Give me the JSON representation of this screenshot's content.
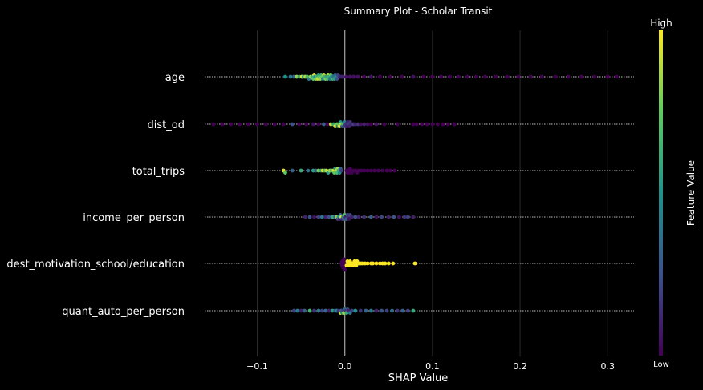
{
  "chart_data": {
    "type": "scatter",
    "subtype": "shap-beeswarm",
    "title": "Summary Plot - Scholar Transit",
    "xlabel": "SHAP Value",
    "xlim": [
      -0.16,
      0.33
    ],
    "xticks": [
      -0.1,
      0.0,
      0.1,
      0.2,
      0.3
    ],
    "xtick_labels": [
      "−0.1",
      "0.0",
      "0.1",
      "0.2",
      "0.3"
    ],
    "grid": true,
    "colorbar": {
      "label": "Feature Value",
      "high_label": "High",
      "low_label": "Low",
      "colormap": [
        "#440154",
        "#3b528b",
        "#21918c",
        "#5ec962",
        "#fde725"
      ]
    },
    "features": [
      {
        "name": "age",
        "points": [
          [
            -0.068,
            0.5
          ],
          [
            -0.062,
            0.4
          ],
          [
            -0.058,
            0.3
          ],
          [
            -0.055,
            0.85
          ],
          [
            -0.052,
            0.6
          ],
          [
            -0.049,
            0.95
          ],
          [
            -0.047,
            0.5
          ],
          [
            -0.045,
            0.9
          ],
          [
            -0.043,
            0.7
          ],
          [
            -0.041,
            0.4
          ],
          [
            -0.039,
            0.85
          ],
          [
            -0.037,
            0.6
          ],
          [
            -0.036,
            0.75
          ],
          [
            -0.035,
            0.95
          ],
          [
            -0.034,
            0.5
          ],
          [
            -0.033,
            0.8
          ],
          [
            -0.032,
            0.65
          ],
          [
            -0.031,
            0.9
          ],
          [
            -0.03,
            0.55
          ],
          [
            -0.029,
            0.7
          ],
          [
            -0.028,
            0.85
          ],
          [
            -0.027,
            0.6
          ],
          [
            -0.026,
            0.75
          ],
          [
            -0.025,
            0.45
          ],
          [
            -0.024,
            0.9
          ],
          [
            -0.023,
            0.65
          ],
          [
            -0.022,
            0.8
          ],
          [
            -0.021,
            0.55
          ],
          [
            -0.02,
            0.7
          ],
          [
            -0.019,
            0.85
          ],
          [
            -0.018,
            0.6
          ],
          [
            -0.017,
            0.4
          ],
          [
            -0.016,
            0.75
          ],
          [
            -0.015,
            0.5
          ],
          [
            -0.014,
            0.65
          ],
          [
            -0.013,
            0.35
          ],
          [
            -0.012,
            0.55
          ],
          [
            -0.011,
            0.3
          ],
          [
            -0.01,
            0.45
          ],
          [
            -0.009,
            0.25
          ],
          [
            -0.008,
            0.2
          ],
          [
            -0.006,
            0.15
          ],
          [
            -0.004,
            0.1
          ],
          [
            -0.002,
            0.1
          ],
          [
            0.002,
            0.05
          ],
          [
            0.006,
            0.05
          ],
          [
            0.01,
            0.05
          ],
          [
            0.015,
            0.05
          ],
          [
            0.022,
            0.0
          ],
          [
            0.03,
            0.05
          ],
          [
            0.04,
            0.0
          ],
          [
            0.052,
            0.0
          ],
          [
            0.065,
            0.0
          ],
          [
            0.078,
            0.05
          ],
          [
            0.09,
            0.0
          ],
          [
            0.1,
            0.0
          ],
          [
            0.11,
            0.0
          ],
          [
            0.12,
            0.0
          ],
          [
            0.13,
            0.0
          ],
          [
            0.14,
            0.0
          ],
          [
            0.15,
            0.0
          ],
          [
            0.16,
            0.0
          ],
          [
            0.172,
            0.0
          ],
          [
            0.185,
            0.0
          ],
          [
            0.198,
            0.0
          ],
          [
            0.212,
            0.0
          ],
          [
            0.225,
            0.0
          ],
          [
            0.24,
            0.0
          ],
          [
            0.255,
            0.0
          ],
          [
            0.27,
            0.0
          ],
          [
            0.285,
            0.0
          ],
          [
            0.3,
            0.0
          ],
          [
            0.31,
            0.0
          ]
        ]
      },
      {
        "name": "dist_od",
        "points": [
          [
            -0.15,
            0.0
          ],
          [
            -0.14,
            0.0
          ],
          [
            -0.13,
            0.0
          ],
          [
            -0.12,
            0.0
          ],
          [
            -0.11,
            0.0
          ],
          [
            -0.1,
            0.0
          ],
          [
            -0.09,
            0.0
          ],
          [
            -0.08,
            0.0
          ],
          [
            -0.07,
            0.0
          ],
          [
            -0.06,
            0.25
          ],
          [
            -0.052,
            0.0
          ],
          [
            -0.044,
            0.0
          ],
          [
            -0.036,
            0.05
          ],
          [
            -0.03,
            0.0
          ],
          [
            -0.024,
            0.3
          ],
          [
            -0.02,
            0.0
          ],
          [
            -0.016,
            0.9
          ],
          [
            -0.013,
            0.6
          ],
          [
            -0.011,
            0.95
          ],
          [
            -0.009,
            0.8
          ],
          [
            -0.008,
            0.4
          ],
          [
            -0.007,
            0.7
          ],
          [
            -0.006,
            0.95
          ],
          [
            -0.005,
            0.5
          ],
          [
            -0.004,
            0.85
          ],
          [
            -0.003,
            0.3
          ],
          [
            -0.002,
            0.65
          ],
          [
            -0.001,
            0.2
          ],
          [
            0.0,
            0.45
          ],
          [
            0.001,
            0.15
          ],
          [
            0.002,
            0.1
          ],
          [
            0.003,
            0.1
          ],
          [
            0.004,
            0.2
          ],
          [
            0.005,
            0.1
          ],
          [
            0.006,
            0.15
          ],
          [
            0.008,
            0.1
          ],
          [
            0.01,
            0.2
          ],
          [
            0.012,
            0.1
          ],
          [
            0.015,
            0.15
          ],
          [
            0.018,
            0.05
          ],
          [
            0.022,
            0.1
          ],
          [
            0.026,
            0.05
          ],
          [
            0.03,
            0.0
          ],
          [
            0.036,
            0.05
          ],
          [
            0.045,
            0.0
          ],
          [
            0.06,
            0.0
          ],
          [
            0.078,
            0.0
          ],
          [
            0.082,
            0.0
          ],
          [
            0.088,
            0.0
          ],
          [
            0.094,
            0.0
          ],
          [
            0.1,
            0.0
          ],
          [
            0.106,
            0.0
          ],
          [
            0.112,
            0.0
          ],
          [
            0.118,
            0.0
          ],
          [
            0.125,
            0.0
          ]
        ]
      },
      {
        "name": "total_trips",
        "points": [
          [
            -0.07,
            0.95
          ],
          [
            -0.068,
            0.75
          ],
          [
            -0.06,
            0.3
          ],
          [
            -0.05,
            0.6
          ],
          [
            -0.042,
            0.35
          ],
          [
            -0.036,
            0.55
          ],
          [
            -0.033,
            0.3
          ],
          [
            -0.03,
            0.8
          ],
          [
            -0.027,
            0.6
          ],
          [
            -0.025,
            0.95
          ],
          [
            -0.023,
            0.7
          ],
          [
            -0.021,
            0.9
          ],
          [
            -0.019,
            0.55
          ],
          [
            -0.017,
            0.85
          ],
          [
            -0.015,
            0.65
          ],
          [
            -0.013,
            0.95
          ],
          [
            -0.012,
            0.75
          ],
          [
            -0.011,
            0.5
          ],
          [
            -0.01,
            0.9
          ],
          [
            -0.009,
            0.7
          ],
          [
            -0.008,
            0.85
          ],
          [
            -0.007,
            0.6
          ],
          [
            -0.006,
            0.5
          ],
          [
            -0.005,
            0.3
          ],
          [
            -0.004,
            0.2
          ],
          [
            0.002,
            0.0
          ],
          [
            0.003,
            0.0
          ],
          [
            0.004,
            0.0
          ],
          [
            0.005,
            0.0
          ],
          [
            0.006,
            0.0
          ],
          [
            0.007,
            0.0
          ],
          [
            0.008,
            0.0
          ],
          [
            0.01,
            0.0
          ],
          [
            0.012,
            0.0
          ],
          [
            0.014,
            0.0
          ],
          [
            0.016,
            0.0
          ],
          [
            0.019,
            0.0
          ],
          [
            0.022,
            0.0
          ],
          [
            0.026,
            0.0
          ],
          [
            0.03,
            0.0
          ],
          [
            0.034,
            0.0
          ],
          [
            0.038,
            0.0
          ],
          [
            0.043,
            0.0
          ],
          [
            0.048,
            0.0
          ],
          [
            0.052,
            0.0
          ],
          [
            0.057,
            0.0
          ]
        ]
      },
      {
        "name": "income_per_person",
        "points": [
          [
            -0.045,
            0.1
          ],
          [
            -0.04,
            0.25
          ],
          [
            -0.035,
            0.05
          ],
          [
            -0.03,
            0.2
          ],
          [
            -0.026,
            0.4
          ],
          [
            -0.022,
            0.1
          ],
          [
            -0.018,
            0.25
          ],
          [
            -0.014,
            0.6
          ],
          [
            -0.011,
            0.3
          ],
          [
            -0.009,
            0.85
          ],
          [
            -0.008,
            0.2
          ],
          [
            -0.007,
            0.5
          ],
          [
            -0.006,
            0.1
          ],
          [
            -0.005,
            0.35
          ],
          [
            -0.004,
            0.95
          ],
          [
            -0.003,
            0.15
          ],
          [
            -0.002,
            0.45
          ],
          [
            -0.001,
            0.25
          ],
          [
            0.0,
            0.7
          ],
          [
            0.001,
            0.1
          ],
          [
            0.002,
            0.3
          ],
          [
            0.003,
            0.2
          ],
          [
            0.004,
            0.15
          ],
          [
            0.005,
            0.05
          ],
          [
            0.006,
            0.2
          ],
          [
            0.008,
            0.1
          ],
          [
            0.012,
            0.25
          ],
          [
            0.016,
            0.1
          ],
          [
            0.022,
            0.15
          ],
          [
            0.03,
            0.3
          ],
          [
            0.036,
            0.05
          ],
          [
            0.042,
            0.2
          ],
          [
            0.05,
            0.1
          ],
          [
            0.056,
            0.25
          ],
          [
            0.062,
            0.05
          ],
          [
            0.068,
            0.15
          ],
          [
            0.072,
            0.2
          ],
          [
            0.078,
            0.1
          ]
        ]
      },
      {
        "name": "dest_motivation_school/education",
        "points": [
          [
            -0.004,
            0.0
          ],
          [
            -0.003,
            0.0
          ],
          [
            -0.002,
            0.0
          ],
          [
            -0.001,
            0.0
          ],
          [
            0.0,
            0.0
          ],
          [
            -0.002,
            0.0
          ],
          [
            -0.001,
            0.0
          ],
          [
            0.0,
            0.0
          ],
          [
            0.001,
            0.0
          ],
          [
            -0.003,
            0.0
          ],
          [
            0.002,
            1.0
          ],
          [
            0.003,
            1.0
          ],
          [
            0.004,
            1.0
          ],
          [
            0.005,
            1.0
          ],
          [
            0.006,
            1.0
          ],
          [
            0.007,
            1.0
          ],
          [
            0.008,
            1.0
          ],
          [
            0.009,
            1.0
          ],
          [
            0.01,
            1.0
          ],
          [
            0.011,
            1.0
          ],
          [
            0.012,
            1.0
          ],
          [
            0.013,
            1.0
          ],
          [
            0.014,
            1.0
          ],
          [
            0.016,
            1.0
          ],
          [
            0.018,
            1.0
          ],
          [
            0.02,
            1.0
          ],
          [
            0.023,
            1.0
          ],
          [
            0.026,
            1.0
          ],
          [
            0.03,
            1.0
          ],
          [
            0.032,
            1.0
          ],
          [
            0.036,
            1.0
          ],
          [
            0.04,
            1.0
          ],
          [
            0.043,
            1.0
          ],
          [
            0.046,
            1.0
          ],
          [
            0.05,
            1.0
          ],
          [
            0.055,
            1.0
          ],
          [
            0.08,
            1.0
          ]
        ]
      },
      {
        "name": "quant_auto_per_person",
        "points": [
          [
            -0.058,
            0.2
          ],
          [
            -0.054,
            0.4
          ],
          [
            -0.05,
            0.1
          ],
          [
            -0.046,
            0.3
          ],
          [
            -0.04,
            0.65
          ],
          [
            -0.035,
            0.15
          ],
          [
            -0.03,
            0.4
          ],
          [
            -0.026,
            0.2
          ],
          [
            -0.022,
            0.35
          ],
          [
            -0.018,
            0.1
          ],
          [
            -0.014,
            0.55
          ],
          [
            -0.011,
            0.25
          ],
          [
            -0.009,
            0.45
          ],
          [
            -0.007,
            0.15
          ],
          [
            -0.005,
            0.95
          ],
          [
            -0.004,
            0.3
          ],
          [
            -0.003,
            0.5
          ],
          [
            -0.002,
            0.2
          ],
          [
            -0.001,
            0.85
          ],
          [
            0.0,
            0.35
          ],
          [
            0.001,
            0.15
          ],
          [
            0.002,
            0.6
          ],
          [
            0.003,
            0.25
          ],
          [
            0.004,
            0.1
          ],
          [
            0.006,
            0.4
          ],
          [
            0.008,
            0.2
          ],
          [
            0.012,
            0.5
          ],
          [
            0.018,
            0.15
          ],
          [
            0.024,
            0.3
          ],
          [
            0.03,
            0.4
          ],
          [
            0.036,
            0.1
          ],
          [
            0.042,
            0.25
          ],
          [
            0.048,
            0.2
          ],
          [
            0.054,
            0.35
          ],
          [
            0.06,
            0.15
          ],
          [
            0.066,
            0.3
          ],
          [
            0.072,
            0.2
          ],
          [
            0.078,
            0.6
          ]
        ]
      }
    ]
  }
}
